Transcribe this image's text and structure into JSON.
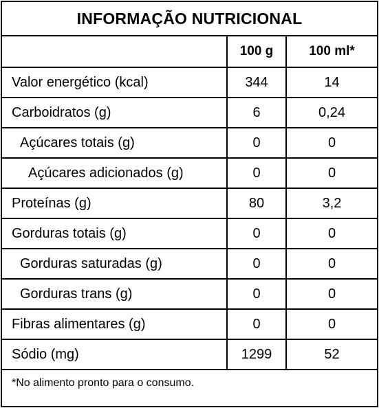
{
  "title": "INFORMAÇÃO NUTRICIONAL",
  "columns": {
    "name": "",
    "per_100g": "100 g",
    "per_100ml": "100 ml*"
  },
  "rows": [
    {
      "label": "Valor energético (kcal)",
      "per_100g": "344",
      "per_100ml": "14"
    },
    {
      "label": "Carboidratos (g)",
      "per_100g": "6",
      "per_100ml": "0,24"
    },
    {
      "label": "Açúcares totais (g)",
      "per_100g": "0",
      "per_100ml": "0"
    },
    {
      "label": "Açúcares adicionados (g)",
      "per_100g": "0",
      "per_100ml": "0"
    },
    {
      "label": "Proteínas (g)",
      "per_100g": "80",
      "per_100ml": "3,2"
    },
    {
      "label": "Gorduras totais (g)",
      "per_100g": "0",
      "per_100ml": "0"
    },
    {
      "label": "Gorduras saturadas (g)",
      "per_100g": "0",
      "per_100ml": "0"
    },
    {
      "label": "Gorduras trans (g)",
      "per_100g": "0",
      "per_100ml": "0"
    },
    {
      "label": "Fibras alimentares (g)",
      "per_100g": "0",
      "per_100ml": "0"
    },
    {
      "label": "Sódio (mg)",
      "per_100g": "1299",
      "per_100ml": "52"
    }
  ],
  "footnote": "*No alimento pronto para o consumo."
}
